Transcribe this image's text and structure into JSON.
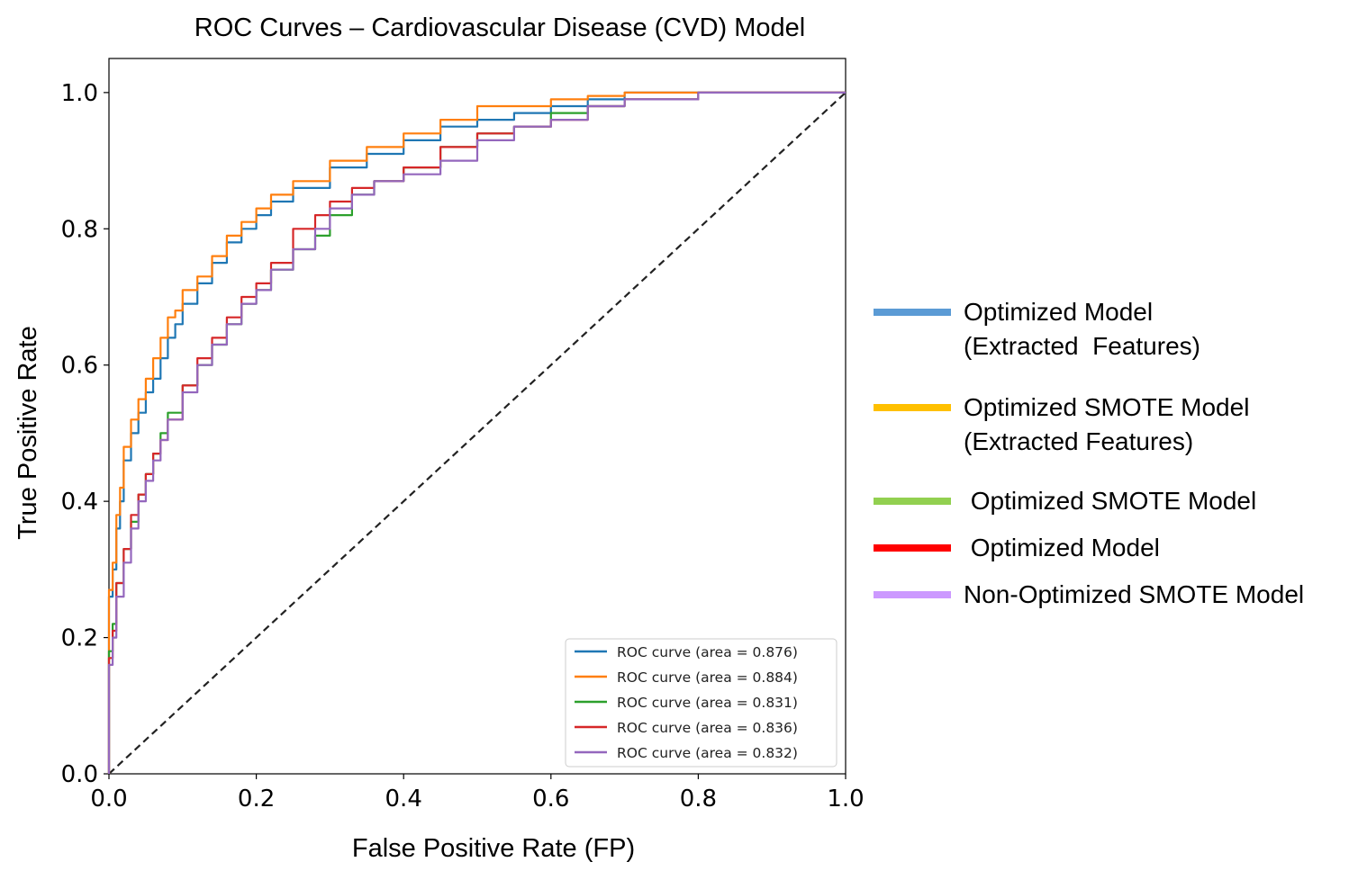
{
  "chart_data": {
    "type": "line",
    "title": "ROC Curves – Cardiovascular Disease (CVD) Model",
    "xlabel": "False Positive Rate (FP)",
    "ylabel": "True Positive Rate",
    "xlim": [
      0.0,
      1.0
    ],
    "ylim": [
      0.0,
      1.05
    ],
    "x_ticks": [
      "0.0",
      "0.2",
      "0.4",
      "0.6",
      "0.8",
      "1.0"
    ],
    "y_ticks": [
      "0.0",
      "0.2",
      "0.4",
      "0.6",
      "0.8",
      "1.0"
    ],
    "grid": false,
    "legend_position": "lower right",
    "diagonal": {
      "x": [
        0,
        1
      ],
      "y": [
        0,
        1
      ],
      "style": "dashed",
      "color": "#222222"
    },
    "series": [
      {
        "name": "ROC curve (area = 0.876)",
        "color": "#1f77b4",
        "x": [
          0,
          0,
          0.005,
          0.01,
          0.015,
          0.02,
          0.03,
          0.04,
          0.05,
          0.06,
          0.07,
          0.08,
          0.09,
          0.1,
          0.12,
          0.14,
          0.16,
          0.18,
          0.2,
          0.22,
          0.25,
          0.3,
          0.35,
          0.4,
          0.45,
          0.5,
          0.55,
          0.6,
          0.65,
          0.7,
          0.75,
          0.8,
          0.9,
          1.0
        ],
        "y": [
          0,
          0.22,
          0.26,
          0.3,
          0.36,
          0.4,
          0.46,
          0.5,
          0.53,
          0.56,
          0.58,
          0.61,
          0.64,
          0.66,
          0.69,
          0.72,
          0.75,
          0.78,
          0.8,
          0.82,
          0.84,
          0.86,
          0.89,
          0.91,
          0.93,
          0.95,
          0.96,
          0.97,
          0.98,
          0.99,
          1.0,
          1.0,
          1.0,
          1.0
        ]
      },
      {
        "name": "ROC curve (area = 0.884)",
        "color": "#ff7f0e",
        "x": [
          0,
          0,
          0.005,
          0.01,
          0.015,
          0.02,
          0.03,
          0.04,
          0.05,
          0.06,
          0.07,
          0.08,
          0.09,
          0.1,
          0.12,
          0.14,
          0.16,
          0.18,
          0.2,
          0.22,
          0.25,
          0.3,
          0.35,
          0.4,
          0.45,
          0.5,
          0.55,
          0.6,
          0.65,
          0.7,
          0.75,
          0.8,
          0.9,
          1.0
        ],
        "y": [
          0,
          0.24,
          0.27,
          0.31,
          0.38,
          0.42,
          0.48,
          0.52,
          0.55,
          0.58,
          0.61,
          0.64,
          0.67,
          0.68,
          0.71,
          0.73,
          0.76,
          0.79,
          0.81,
          0.83,
          0.85,
          0.87,
          0.9,
          0.92,
          0.94,
          0.96,
          0.98,
          0.98,
          0.99,
          0.995,
          1.0,
          1.0,
          1.0,
          1.0
        ]
      },
      {
        "name": "ROC curve (area = 0.831)",
        "color": "#2ca02c",
        "x": [
          0,
          0,
          0.005,
          0.01,
          0.02,
          0.03,
          0.04,
          0.05,
          0.06,
          0.07,
          0.08,
          0.1,
          0.12,
          0.14,
          0.16,
          0.18,
          0.2,
          0.22,
          0.25,
          0.28,
          0.3,
          0.33,
          0.36,
          0.4,
          0.45,
          0.5,
          0.55,
          0.6,
          0.65,
          0.7,
          0.8,
          0.9,
          1.0
        ],
        "y": [
          0,
          0.12,
          0.18,
          0.22,
          0.28,
          0.33,
          0.37,
          0.41,
          0.44,
          0.47,
          0.5,
          0.53,
          0.57,
          0.6,
          0.63,
          0.66,
          0.69,
          0.71,
          0.74,
          0.77,
          0.79,
          0.82,
          0.85,
          0.87,
          0.89,
          0.92,
          0.94,
          0.95,
          0.97,
          0.98,
          0.99,
          1.0,
          1.0
        ]
      },
      {
        "name": "ROC curve (area = 0.836)",
        "color": "#d62728",
        "x": [
          0,
          0,
          0.005,
          0.01,
          0.02,
          0.03,
          0.04,
          0.05,
          0.06,
          0.07,
          0.08,
          0.1,
          0.12,
          0.14,
          0.16,
          0.18,
          0.2,
          0.22,
          0.25,
          0.28,
          0.3,
          0.33,
          0.36,
          0.4,
          0.45,
          0.5,
          0.55,
          0.6,
          0.65,
          0.7,
          0.8,
          0.9,
          1.0
        ],
        "y": [
          0,
          0.11,
          0.17,
          0.21,
          0.28,
          0.33,
          0.38,
          0.41,
          0.44,
          0.47,
          0.49,
          0.52,
          0.57,
          0.61,
          0.64,
          0.67,
          0.7,
          0.72,
          0.75,
          0.8,
          0.82,
          0.84,
          0.86,
          0.87,
          0.89,
          0.92,
          0.94,
          0.95,
          0.96,
          0.98,
          0.99,
          1.0,
          1.0
        ]
      },
      {
        "name": "ROC curve (area = 0.832)",
        "color": "#9467bd",
        "x": [
          0,
          0,
          0.005,
          0.01,
          0.02,
          0.03,
          0.04,
          0.05,
          0.06,
          0.07,
          0.08,
          0.1,
          0.12,
          0.14,
          0.16,
          0.18,
          0.2,
          0.22,
          0.25,
          0.28,
          0.3,
          0.33,
          0.36,
          0.4,
          0.45,
          0.5,
          0.55,
          0.6,
          0.65,
          0.7,
          0.8,
          0.9,
          1.0
        ],
        "y": [
          0,
          0.1,
          0.16,
          0.2,
          0.26,
          0.31,
          0.36,
          0.4,
          0.43,
          0.46,
          0.49,
          0.52,
          0.56,
          0.6,
          0.63,
          0.66,
          0.69,
          0.71,
          0.74,
          0.77,
          0.8,
          0.83,
          0.85,
          0.87,
          0.88,
          0.9,
          0.93,
          0.95,
          0.96,
          0.98,
          0.99,
          1.0,
          1.0
        ]
      }
    ]
  },
  "external_legend": [
    {
      "lines": [
        "Optimized Model",
        "(Extracted  Features)"
      ],
      "color": "#5b9bd5"
    },
    {
      "lines": [
        "Optimized SMOTE Model",
        "(Extracted Features)"
      ],
      "color": "#ffc000"
    },
    {
      "lines": [
        " Optimized SMOTE Model"
      ],
      "color": "#92d050"
    },
    {
      "lines": [
        " Optimized Model"
      ],
      "color": "#ff0000"
    },
    {
      "lines": [
        "Non-Optimized SMOTE Model"
      ],
      "color": "#cc99ff"
    }
  ]
}
